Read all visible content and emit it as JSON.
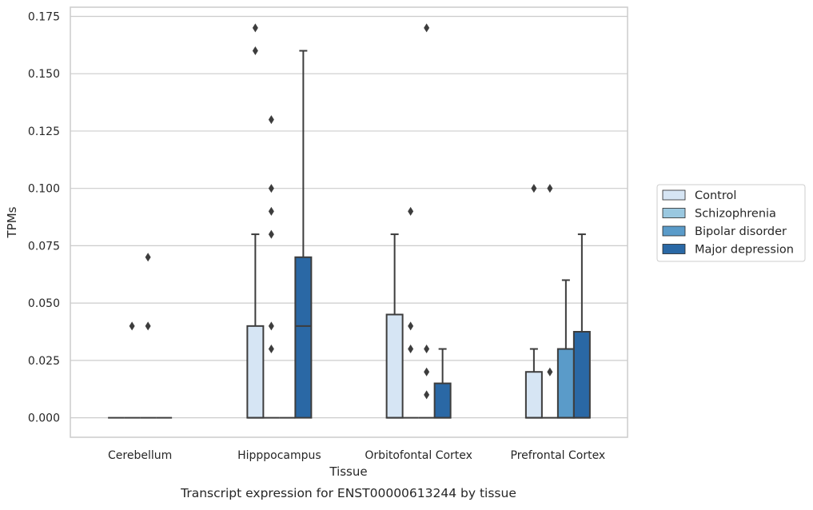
{
  "chart_data": {
    "type": "box",
    "caption": "Transcript expression for ENST00000613244 by tissue",
    "xlabel": "Tissue",
    "ylabel": "TPMs",
    "ylim": [
      -0.0085,
      0.179
    ],
    "y_ticks": [
      "0.000",
      "0.025",
      "0.050",
      "0.075",
      "0.100",
      "0.125",
      "0.150",
      "0.175"
    ],
    "y_tick_values": [
      0,
      0.025,
      0.05,
      0.075,
      0.1,
      0.125,
      0.15,
      0.175
    ],
    "grid": true,
    "legend_position": "right",
    "categories": [
      "Cerebellum",
      "Hipppocampus",
      "Orbitofontal Cortex",
      "Prefrontal Cortex"
    ],
    "series": [
      {
        "name": "Control",
        "color": "#d6e5f4",
        "boxes": [
          {
            "q1": 0,
            "median": 0,
            "q3": 0,
            "whisker_low": 0,
            "whisker_high": 0,
            "outliers": []
          },
          {
            "q1": 0,
            "median": 0,
            "q3": 0.04,
            "whisker_low": 0,
            "whisker_high": 0.08,
            "outliers": [
              0.16,
              0.17
            ]
          },
          {
            "q1": 0,
            "median": 0,
            "q3": 0.045,
            "whisker_low": 0,
            "whisker_high": 0.08,
            "outliers": []
          },
          {
            "q1": 0,
            "median": 0,
            "q3": 0.02,
            "whisker_low": 0,
            "whisker_high": 0.03,
            "outliers": [
              0.1
            ]
          }
        ]
      },
      {
        "name": "Schizophrenia",
        "color": "#9ac8e0",
        "boxes": [
          {
            "q1": 0,
            "median": 0,
            "q3": 0,
            "whisker_low": 0,
            "whisker_high": 0,
            "outliers": [
              0.04
            ]
          },
          {
            "q1": 0,
            "median": 0,
            "q3": 0,
            "whisker_low": 0,
            "whisker_high": 0,
            "outliers": [
              0.03,
              0.04,
              0.08,
              0.09,
              0.1,
              0.13
            ]
          },
          {
            "q1": 0,
            "median": 0,
            "q3": 0,
            "whisker_low": 0,
            "whisker_high": 0,
            "outliers": [
              0.03,
              0.04,
              0.09
            ]
          },
          {
            "q1": 0,
            "median": 0,
            "q3": 0,
            "whisker_low": 0,
            "whisker_high": 0,
            "outliers": [
              0.02,
              0.1
            ]
          }
        ]
      },
      {
        "name": "Bipolar disorder",
        "color": "#5a9bc9",
        "boxes": [
          {
            "q1": 0,
            "median": 0,
            "q3": 0,
            "whisker_low": 0,
            "whisker_high": 0,
            "outliers": [
              0.04,
              0.07
            ]
          },
          {
            "q1": 0,
            "median": 0,
            "q3": 0,
            "whisker_low": 0,
            "whisker_high": 0,
            "outliers": []
          },
          {
            "q1": 0,
            "median": 0,
            "q3": 0,
            "whisker_low": 0,
            "whisker_high": 0,
            "outliers": [
              0.01,
              0.02,
              0.03,
              0.17
            ]
          },
          {
            "q1": 0,
            "median": 0,
            "q3": 0.03,
            "whisker_low": 0,
            "whisker_high": 0.06,
            "outliers": []
          }
        ]
      },
      {
        "name": "Major depression",
        "color": "#2a68a5",
        "boxes": [
          {
            "q1": 0,
            "median": 0,
            "q3": 0,
            "whisker_low": 0,
            "whisker_high": 0,
            "outliers": []
          },
          {
            "q1": 0,
            "median": 0.04,
            "q3": 0.07,
            "whisker_low": 0,
            "whisker_high": 0.16,
            "outliers": []
          },
          {
            "q1": 0,
            "median": 0,
            "q3": 0.015,
            "whisker_low": 0,
            "whisker_high": 0.03,
            "outliers": []
          },
          {
            "q1": 0,
            "median": 0,
            "q3": 0.0375,
            "whisker_low": 0,
            "whisker_high": 0.08,
            "outliers": []
          }
        ]
      }
    ]
  }
}
